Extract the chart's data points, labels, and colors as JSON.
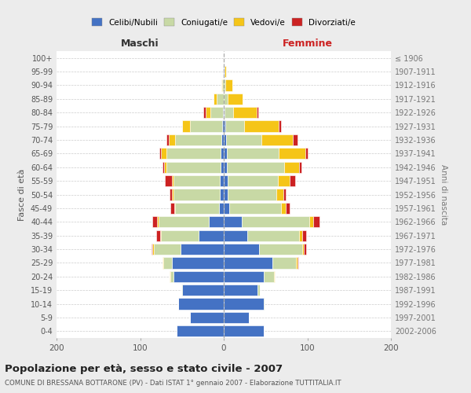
{
  "age_groups": [
    "0-4",
    "5-9",
    "10-14",
    "15-19",
    "20-24",
    "25-29",
    "30-34",
    "35-39",
    "40-44",
    "45-49",
    "50-54",
    "55-59",
    "60-64",
    "65-69",
    "70-74",
    "75-79",
    "80-84",
    "85-89",
    "90-94",
    "95-99",
    "100+"
  ],
  "birth_years": [
    "2002-2006",
    "1997-2001",
    "1992-1996",
    "1987-1991",
    "1982-1986",
    "1977-1981",
    "1972-1976",
    "1967-1971",
    "1962-1966",
    "1957-1961",
    "1952-1956",
    "1947-1951",
    "1942-1946",
    "1937-1941",
    "1932-1936",
    "1927-1931",
    "1922-1926",
    "1917-1921",
    "1912-1916",
    "1907-1911",
    "≤ 1906"
  ],
  "male": {
    "celibi": [
      56,
      40,
      54,
      50,
      60,
      62,
      52,
      30,
      18,
      6,
      5,
      5,
      4,
      4,
      3,
      2,
      1,
      0,
      0,
      1,
      0
    ],
    "coniugati": [
      0,
      0,
      0,
      1,
      4,
      10,
      32,
      45,
      60,
      52,
      55,
      55,
      65,
      65,
      55,
      38,
      15,
      8,
      2,
      0,
      0
    ],
    "vedovi": [
      0,
      0,
      0,
      0,
      1,
      1,
      1,
      1,
      2,
      1,
      2,
      2,
      2,
      6,
      8,
      10,
      6,
      4,
      1,
      0,
      0
    ],
    "divorziati": [
      0,
      0,
      0,
      0,
      0,
      0,
      1,
      5,
      5,
      5,
      3,
      8,
      2,
      2,
      3,
      0,
      2,
      0,
      0,
      0,
      0
    ]
  },
  "female": {
    "nubili": [
      48,
      30,
      48,
      40,
      48,
      58,
      42,
      28,
      22,
      7,
      5,
      5,
      4,
      4,
      3,
      2,
      1,
      0,
      0,
      1,
      0
    ],
    "coniugate": [
      0,
      0,
      1,
      3,
      12,
      28,
      52,
      62,
      80,
      62,
      58,
      60,
      68,
      62,
      42,
      22,
      10,
      5,
      2,
      0,
      0
    ],
    "vedove": [
      0,
      0,
      0,
      0,
      1,
      2,
      2,
      4,
      5,
      5,
      8,
      14,
      18,
      32,
      38,
      42,
      28,
      18,
      8,
      2,
      0
    ],
    "divorziate": [
      0,
      0,
      0,
      0,
      0,
      1,
      3,
      5,
      8,
      5,
      3,
      6,
      3,
      2,
      5,
      3,
      2,
      0,
      0,
      0,
      0
    ]
  },
  "colors": {
    "celibi": "#4472c4",
    "coniugati": "#c8d9a5",
    "vedovi": "#f5c518",
    "divorziati": "#cc2222"
  },
  "xlim": 200,
  "title": "Popolazione per età, sesso e stato civile - 2007",
  "subtitle": "COMUNE DI BRESSANA BOTTARONE (PV) - Dati ISTAT 1° gennaio 2007 - Elaborazione TUTTITALIA.IT",
  "label_maschi": "Maschi",
  "label_femmine": "Femmine",
  "ylabel_left": "Fasce di età",
  "ylabel_right": "Anni di nascita",
  "bg_color": "#ececec",
  "plot_bg_color": "#ffffff"
}
